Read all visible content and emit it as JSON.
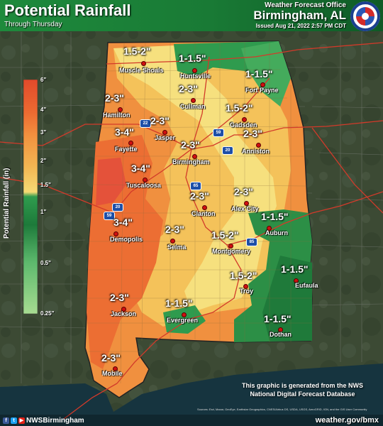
{
  "header": {
    "title": "Potential Rainfall",
    "subtitle": "Through Thursday",
    "office": "Weather Forecast Office",
    "office_location": "Birmingham, AL",
    "issued": "Issued Aug 21, 2022 2:57 PM CDT"
  },
  "legend": {
    "title": "Potential Rainfall (in)",
    "ticks": [
      "6\"",
      "4\"",
      "3\"",
      "2\"",
      "1.5\"",
      "1\"",
      "0.5\"",
      "0.25\""
    ],
    "colors": [
      "#e8582f",
      "#f07a35",
      "#f19a45",
      "#f2be5a",
      "#f5dc76",
      "#2d9b4e",
      "#1f7a3a",
      "#6cc37a",
      "#9fd98b"
    ]
  },
  "amounts": [
    {
      "text": "1.5-2\"",
      "city": "Muscle Shoals"
    },
    {
      "text": "1-1.5\"",
      "city": "Huntsville"
    },
    {
      "text": "1-1.5\"",
      "city": "Fort Payne"
    },
    {
      "text": "2-3\"",
      "city": "Cullman"
    },
    {
      "text": "2-3\"",
      "city": "Hamilton"
    },
    {
      "text": "1.5-2\"",
      "city": "Gadsden"
    },
    {
      "text": "2-3\"",
      "city": "Jasper"
    },
    {
      "text": "3-4\"",
      "city": "Fayette"
    },
    {
      "text": "2-3\"",
      "city": "Anniston"
    },
    {
      "text": "2-3\"",
      "city": "Birmingham"
    },
    {
      "text": "3-4\"",
      "city": "Tuscaloosa"
    },
    {
      "text": "2-3\"",
      "city": "Clanton"
    },
    {
      "text": "2-3\"",
      "city": "Alex City"
    },
    {
      "text": "1-1.5\"",
      "city": "Auburn"
    },
    {
      "text": "3-4\"",
      "city": "Demopolis"
    },
    {
      "text": "2-3\"",
      "city": "Selma"
    },
    {
      "text": "1.5-2\"",
      "city": "Montgomery"
    },
    {
      "text": "1-1.5\"",
      "city": "Eufaula"
    },
    {
      "text": "1.5-2\"",
      "city": "Troy"
    },
    {
      "text": "2-3\"",
      "city": "Jackson"
    },
    {
      "text": "1-1.5\"",
      "city": "Evergreen"
    },
    {
      "text": "1-1.5\"",
      "city": "Dothan"
    },
    {
      "text": "2-3\"",
      "city": "Mobile"
    }
  ],
  "highways": [
    "22",
    "59",
    "20",
    "65",
    "20",
    "59",
    "85"
  ],
  "footer": {
    "social_handle": "NWSBirmingham",
    "website": "weather.gov/bmx",
    "note_line1": "This graphic is generated from the NWS",
    "note_line2": "National Digital Forecast Database",
    "credits": "Sources: Esri, Maxar, GeoEye, Earthstar Geographics, CNES/Airbus DS, USDA, USGS, AeroGRID, IGN, and the GIS User Community"
  }
}
